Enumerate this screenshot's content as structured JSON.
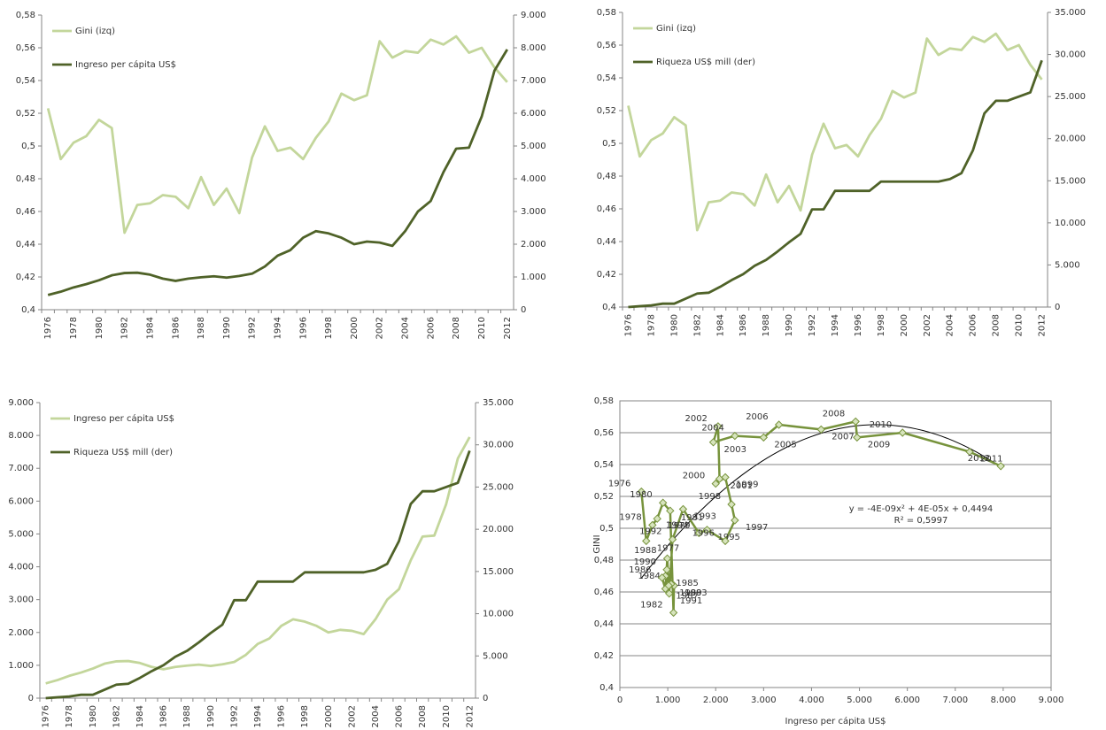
{
  "chart_data": [
    {
      "type": "line",
      "categories": [
        "1976",
        null,
        "1978",
        null,
        "1980",
        null,
        "1982",
        null,
        "1984",
        null,
        "1986",
        null,
        "1988",
        null,
        "1990",
        null,
        "1992",
        null,
        "1994",
        null,
        "1996",
        null,
        "1998",
        null,
        "2000",
        null,
        "2002",
        null,
        "2004",
        null,
        "2006",
        null,
        "2008",
        null,
        "2010",
        null,
        "2012"
      ],
      "series": [
        {
          "name": "Gini (izq)",
          "color": "#c3d69b",
          "axis": "y",
          "values": [
            0.523,
            0.492,
            0.502,
            0.506,
            0.516,
            0.511,
            0.447,
            0.464,
            0.465,
            0.47,
            0.469,
            0.462,
            0.481,
            0.464,
            0.474,
            0.459,
            0.493,
            0.512,
            0.497,
            0.499,
            0.492,
            0.505,
            0.515,
            0.532,
            0.528,
            0.531,
            0.564,
            0.554,
            0.558,
            0.557,
            0.565,
            0.562,
            0.567,
            0.557,
            0.56,
            0.548,
            0.539
          ]
        },
        {
          "name": "Ingreso per cápita US$",
          "color": "#4f6228",
          "axis": "y2",
          "values": [
            450,
            550,
            680,
            780,
            900,
            1050,
            1120,
            1130,
            1070,
            950,
            880,
            950,
            990,
            1020,
            980,
            1030,
            1100,
            1320,
            1650,
            1820,
            2200,
            2400,
            2330,
            2200,
            2000,
            2080,
            2050,
            1950,
            2400,
            3000,
            3320,
            4200,
            4920,
            4950,
            5900,
            7300,
            7950
          ]
        }
      ],
      "ylim": [
        0.4,
        0.58
      ],
      "yticks": [
        {
          "value": 0.4,
          "label": "0,4"
        },
        {
          "value": 0.42,
          "label": "0,42"
        },
        {
          "value": 0.44,
          "label": "0,44"
        },
        {
          "value": 0.46,
          "label": "0,46"
        },
        {
          "value": 0.48,
          "label": "0,48"
        },
        {
          "value": 0.5,
          "label": "0,5"
        },
        {
          "value": 0.52,
          "label": "0,52"
        },
        {
          "value": 0.54,
          "label": "0,54"
        },
        {
          "value": 0.56,
          "label": "0,56"
        },
        {
          "value": 0.58,
          "label": "0,58"
        }
      ],
      "y2lim": [
        0,
        9000
      ],
      "y2ticks": [
        0,
        {
          "value": 1000,
          "label": "1.000"
        },
        {
          "value": 2000,
          "label": "2.000"
        },
        {
          "value": 3000,
          "label": "3.000"
        },
        {
          "value": 4000,
          "label": "4.000"
        },
        {
          "value": 5000,
          "label": "5.000"
        },
        {
          "value": 6000,
          "label": "6.000"
        },
        {
          "value": 7000,
          "label": "7.000"
        },
        {
          "value": 8000,
          "label": "8.000"
        },
        {
          "value": 9000,
          "label": "9.000"
        }
      ],
      "legend": "top-left"
    },
    {
      "type": "line",
      "categories": [
        "1976",
        null,
        "1978",
        null,
        "1980",
        null,
        "1982",
        null,
        "1984",
        null,
        "1986",
        null,
        "1988",
        null,
        "1990",
        null,
        "1992",
        null,
        "1994",
        null,
        "1996",
        null,
        "1998",
        null,
        "2000",
        null,
        "2002",
        null,
        "2004",
        null,
        "2006",
        null,
        "2008",
        null,
        "2010",
        null,
        "2012"
      ],
      "series": [
        {
          "name": "Gini (izq)",
          "color": "#c3d69b",
          "axis": "y",
          "values": [
            0.523,
            0.492,
            0.502,
            0.506,
            0.516,
            0.511,
            0.447,
            0.464,
            0.465,
            0.47,
            0.469,
            0.462,
            0.481,
            0.464,
            0.474,
            0.459,
            0.493,
            0.512,
            0.497,
            0.499,
            0.492,
            0.505,
            0.515,
            0.532,
            0.528,
            0.531,
            0.564,
            0.554,
            0.558,
            0.557,
            0.565,
            0.562,
            0.567,
            0.557,
            0.56,
            0.548,
            0.539
          ]
        },
        {
          "name": "Riqueza  US$ mill (der)",
          "color": "#4f6228",
          "axis": "y2",
          "values": [
            0,
            100,
            200,
            400,
            400,
            1000,
            1600,
            1700,
            2400,
            3200,
            3900,
            4900,
            5600,
            6600,
            7700,
            8700,
            11600,
            11600,
            13800,
            13800,
            13800,
            13800,
            14900,
            14900,
            14900,
            14900,
            14900,
            14900,
            15200,
            15900,
            18600,
            23000,
            24500,
            24500,
            25000,
            25500,
            29300
          ]
        }
      ],
      "ylim": [
        0.4,
        0.58
      ],
      "yticks": [
        {
          "value": 0.4,
          "label": "0,4"
        },
        {
          "value": 0.42,
          "label": "0,42"
        },
        {
          "value": 0.44,
          "label": "0,44"
        },
        {
          "value": 0.46,
          "label": "0,46"
        },
        {
          "value": 0.48,
          "label": "0,48"
        },
        {
          "value": 0.5,
          "label": "0,5"
        },
        {
          "value": 0.52,
          "label": "0,52"
        },
        {
          "value": 0.54,
          "label": "0,54"
        },
        {
          "value": 0.56,
          "label": "0,56"
        },
        {
          "value": 0.58,
          "label": "0,58"
        }
      ],
      "y2lim": [
        0,
        35000
      ],
      "y2ticks": [
        0,
        {
          "value": 5000,
          "label": "5.000"
        },
        {
          "value": 10000,
          "label": "10.000"
        },
        {
          "value": 15000,
          "label": "15.000"
        },
        {
          "value": 20000,
          "label": "20.000"
        },
        {
          "value": 25000,
          "label": "25.000"
        },
        {
          "value": 30000,
          "label": "30.000"
        },
        {
          "value": 35000,
          "label": "35.000"
        }
      ],
      "legend": "top-left"
    },
    {
      "type": "line",
      "categories": [
        "1976",
        null,
        "1978",
        null,
        "1980",
        null,
        "1982",
        null,
        "1984",
        null,
        "1986",
        null,
        "1988",
        null,
        "1990",
        null,
        "1992",
        null,
        "1994",
        null,
        "1996",
        null,
        "1998",
        null,
        "2000",
        null,
        "2002",
        null,
        "2004",
        null,
        "2006",
        null,
        "2008",
        null,
        "2010",
        null,
        "2012"
      ],
      "series": [
        {
          "name": "Ingreso per cápita US$",
          "color": "#c3d69b",
          "axis": "y",
          "values": [
            450,
            550,
            680,
            780,
            900,
            1050,
            1120,
            1130,
            1070,
            950,
            880,
            950,
            990,
            1020,
            980,
            1030,
            1100,
            1320,
            1650,
            1820,
            2200,
            2400,
            2330,
            2200,
            2000,
            2080,
            2050,
            1950,
            2400,
            3000,
            3320,
            4200,
            4920,
            4950,
            5900,
            7300,
            7950
          ]
        },
        {
          "name": "Riqueza  US$ mill (der)",
          "color": "#4f6228",
          "axis": "y2",
          "values": [
            0,
            100,
            200,
            400,
            400,
            1000,
            1600,
            1700,
            2400,
            3200,
            3900,
            4900,
            5600,
            6600,
            7700,
            8700,
            11600,
            11600,
            13800,
            13800,
            13800,
            13800,
            14900,
            14900,
            14900,
            14900,
            14900,
            14900,
            15200,
            15900,
            18600,
            23000,
            24500,
            24500,
            25000,
            25500,
            29300
          ]
        }
      ],
      "ylim": [
        0,
        9000
      ],
      "yticks": [
        0,
        {
          "value": 1000,
          "label": "1.000"
        },
        {
          "value": 2000,
          "label": "2.000"
        },
        {
          "value": 3000,
          "label": "3.000"
        },
        {
          "value": 4000,
          "label": "4.000"
        },
        {
          "value": 5000,
          "label": "5.000"
        },
        {
          "value": 6000,
          "label": "6.000"
        },
        {
          "value": 7000,
          "label": "7.000"
        },
        {
          "value": 8000,
          "label": "8.000"
        },
        {
          "value": 9000,
          "label": "9.000"
        }
      ],
      "y2lim": [
        0,
        35000
      ],
      "y2ticks": [
        0,
        {
          "value": 5000,
          "label": "5.000"
        },
        {
          "value": 10000,
          "label": "10.000"
        },
        {
          "value": 15000,
          "label": "15.000"
        },
        {
          "value": 20000,
          "label": "20.000"
        },
        {
          "value": 25000,
          "label": "25.000"
        },
        {
          "value": 30000,
          "label": "30.000"
        },
        {
          "value": 35000,
          "label": "35.000"
        }
      ],
      "legend": "top-left"
    },
    {
      "type": "scatter",
      "xlabel": "Ingreso per cápita US$",
      "ylabel": "GINI",
      "color": "#77933c",
      "marker_color": "#d7e4bd",
      "point_labels": [
        "1976",
        "1977",
        "1978",
        "1979",
        "1980",
        "1981",
        "1982",
        "1983",
        "1984",
        "1985",
        "1986",
        "1987",
        "1988",
        "1989",
        "1990",
        "1991",
        "1992",
        "1993",
        "1994",
        "1995",
        "1996",
        "1997",
        "1998",
        "1999",
        "2000",
        "2001",
        "2002",
        "2003",
        "2004",
        "2005",
        "2006",
        "2007",
        "2008",
        "2009",
        "2010",
        "2011",
        "2012"
      ],
      "x": [
        450,
        550,
        680,
        780,
        900,
        1050,
        1120,
        1130,
        1070,
        950,
        880,
        950,
        990,
        1020,
        980,
        1030,
        1100,
        1320,
        1650,
        1820,
        2200,
        2400,
        2330,
        2200,
        2000,
        2080,
        2050,
        1950,
        2400,
        3000,
        3320,
        4200,
        4920,
        4950,
        5900,
        7300,
        7950
      ],
      "y": [
        0.523,
        0.492,
        0.502,
        0.506,
        0.516,
        0.511,
        0.447,
        0.464,
        0.465,
        0.47,
        0.469,
        0.462,
        0.481,
        0.464,
        0.474,
        0.459,
        0.493,
        0.512,
        0.497,
        0.499,
        0.492,
        0.505,
        0.515,
        0.532,
        0.528,
        0.531,
        0.564,
        0.554,
        0.558,
        0.557,
        0.565,
        0.562,
        0.567,
        0.557,
        0.56,
        0.548,
        0.539
      ],
      "trendline": "polynomial-2",
      "annotations": [
        "y = -4E-09x² + 4E-05x + 0,4494",
        "R² = 0,5997"
      ],
      "xlim": [
        0,
        9000
      ],
      "xticks": [
        0,
        {
          "value": 1000,
          "label": "1.000"
        },
        {
          "value": 2000,
          "label": "2.000"
        },
        {
          "value": 3000,
          "label": "3.000"
        },
        {
          "value": 4000,
          "label": "4.000"
        },
        {
          "value": 5000,
          "label": "5.000"
        },
        {
          "value": 6000,
          "label": "6.000"
        },
        {
          "value": 7000,
          "label": "7.000"
        },
        {
          "value": 8000,
          "label": "8.000"
        },
        {
          "value": 9000,
          "label": "9.000"
        }
      ],
      "ylim": [
        0.4,
        0.58
      ],
      "yticks": [
        {
          "value": 0.4,
          "label": "0,4"
        },
        {
          "value": 0.42,
          "label": "0,42"
        },
        {
          "value": 0.44,
          "label": "0,44"
        },
        {
          "value": 0.46,
          "label": "0,46"
        },
        {
          "value": 0.48,
          "label": "0,48"
        },
        {
          "value": 0.5,
          "label": "0,5"
        },
        {
          "value": 0.52,
          "label": "0,52"
        },
        {
          "value": 0.54,
          "label": "0,54"
        },
        {
          "value": 0.56,
          "label": "0,56"
        },
        {
          "value": 0.58,
          "label": "0,58"
        }
      ],
      "grid": true
    }
  ]
}
